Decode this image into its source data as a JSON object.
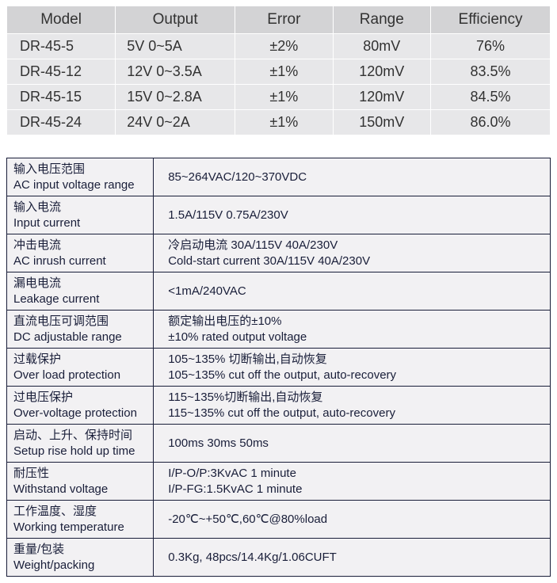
{
  "topTable": {
    "headers": [
      "Model",
      "Output",
      "Error",
      "Range",
      "Efficiency"
    ],
    "rows": [
      {
        "model": "DR-45-5",
        "output": "5V  0~5A",
        "error": "±2%",
        "range": "80mV",
        "eff": "76%"
      },
      {
        "model": "DR-45-12",
        "output": "12V  0~3.5A",
        "error": "±1%",
        "range": "120mV",
        "eff": "83.5%"
      },
      {
        "model": "DR-45-15",
        "output": "15V  0~2.8A",
        "error": "±1%",
        "range": "120mV",
        "eff": "84.5%"
      },
      {
        "model": "DR-45-24",
        "output": "24V  0~2A",
        "error": "±1%",
        "range": "150mV",
        "eff": "86.0%"
      }
    ],
    "headerBg": "#d3d3d5",
    "cellBg": "#e7e7e9",
    "textColor": "#323232"
  },
  "specTable": {
    "borderColor": "#191e39",
    "bg": "#f2f1f3",
    "rows": [
      {
        "cn": "输入电压范围",
        "en": "AC input voltage range",
        "val": "85~264VAC/120~370VDC"
      },
      {
        "cn": "输入电流",
        "en": "Input current",
        "val": "1.5A/115V 0.75A/230V"
      },
      {
        "cn": "冲击电流",
        "en": "AC inrush current",
        "valCn": "冷启动电流 30A/115V 40A/230V",
        "valEn": "Cold-start current 30A/115V 40A/230V"
      },
      {
        "cn": "漏电电流",
        "en": "Leakage current",
        "val": "<1mA/240VAC"
      },
      {
        "cn": "直流电压可调范围",
        "en": "DC adjustable range",
        "valCn": "额定输出电压的±10%",
        "valEn": "±10% rated output voltage"
      },
      {
        "cn": "过载保护",
        "en": "Over load protection",
        "valCn": "105~135% 切断输出,自动恢复",
        "valEn": "105~135% cut off the output, auto-recovery"
      },
      {
        "cn": "过电压保护",
        "en": "Over-voltage protection",
        "valCn": "115~135%切断输出,自动恢复",
        "valEn": "115~135% cut off the output, auto-recovery"
      },
      {
        "cn": "启动、上升、保持时间",
        "en": "Setup rise hold up time",
        "val": "100ms 30ms 50ms"
      },
      {
        "cn": "耐压性",
        "en": "Withstand voltage",
        "valCn": "I/P-O/P:3KvAC 1 minute",
        "valEn": "I/P-FG:1.5KvAC 1 minute"
      },
      {
        "cn": "工作温度、湿度",
        "en": "Working temperature",
        "val": "-20℃~+50℃,60℃@80%load"
      },
      {
        "cn": "重量/包装",
        "en": "Weight/packing",
        "val": "0.3Kg, 48pcs/14.4Kg/1.06CUFT"
      }
    ]
  }
}
